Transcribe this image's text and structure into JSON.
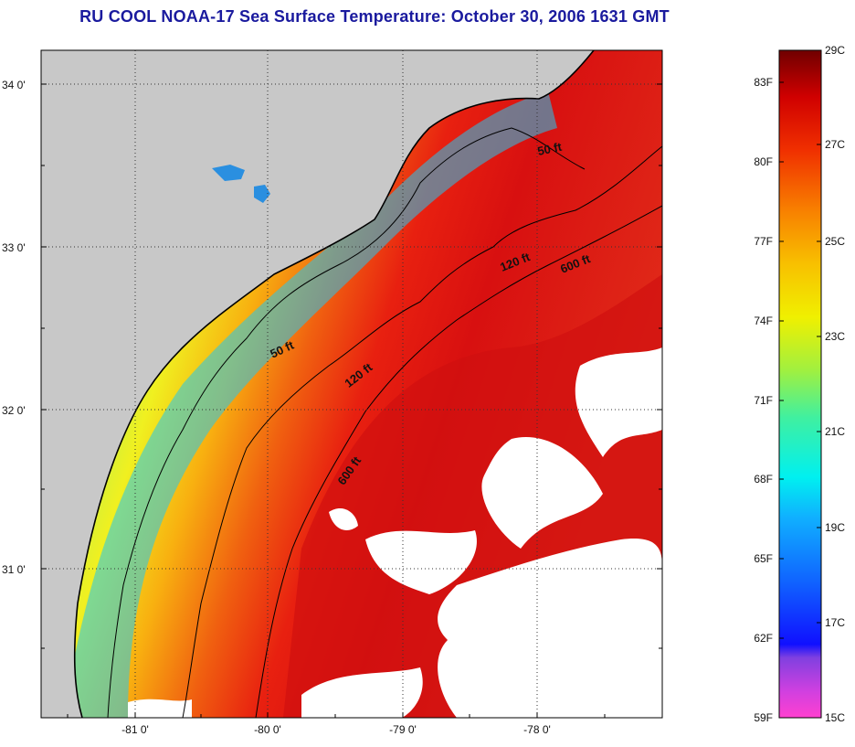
{
  "title": "RU COOL  NOAA-17  Sea Surface Temperature:  October 30, 2006 1631 GMT",
  "map": {
    "lat_labels": [
      "34 0'",
      "33 0'",
      "32 0'",
      "31 0'"
    ],
    "lon_labels": [
      "-81 0'",
      "-80 0'",
      "-79 0'",
      "-78 0'"
    ],
    "contour_labels": [
      "50 ft",
      "50 ft",
      "120 ft",
      "120 ft",
      "600 ft",
      "600 ft"
    ],
    "colors": {
      "land": "#c8c8c8",
      "cloud": "#ffffff",
      "coastline": "#000000"
    }
  },
  "colorbar": {
    "fahrenheit_labels": [
      "83F",
      "80F",
      "77F",
      "74F",
      "71F",
      "68F",
      "65F",
      "62F",
      "59F"
    ],
    "celsius_labels": [
      "29C",
      "27C",
      "25C",
      "23C",
      "21C",
      "19C",
      "17C",
      "15C"
    ]
  }
}
